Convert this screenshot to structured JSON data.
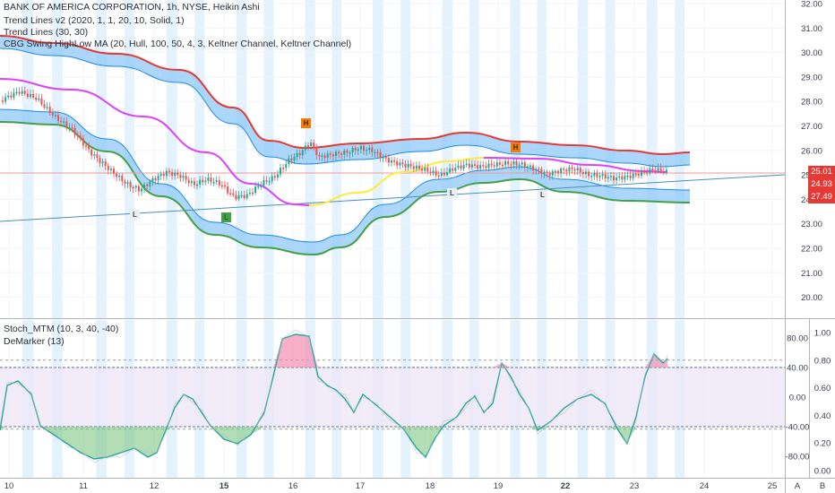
{
  "legend": {
    "title": "BANK OF AMERICA CORPORATION, 1h, NYSE, Heikin Ashi",
    "indicators": [
      "Trend Lines v2 (2020, 1, 1, 20, 10, Solid, 1)",
      "Trend Lines (30, 30)",
      "CBG Swing HighLow MA (20, Hull, 100, 50, 4, 3, Keltner Channel, Keltner Channel)"
    ],
    "lower": [
      "Stoch_MTM (10, 3, 40, -40)",
      "DeMarker (13)"
    ]
  },
  "price_axis": {
    "ticks": [
      "32.00",
      "31.00",
      "30.00",
      "29.00",
      "28.00",
      "27.00",
      "26.00",
      "25.00",
      "24.00",
      "23.00",
      "22.00",
      "21.00",
      "20.00"
    ],
    "labels": [
      {
        "text": "25.01",
        "color": "#e53935"
      },
      {
        "text": "24.93",
        "color": "#ffffff"
      },
      {
        "text": "27.49",
        "color": "#e53935"
      }
    ]
  },
  "stoch_axis": {
    "ticks": [
      "80.00",
      "40.00",
      "0.00",
      "-40.00",
      "-80.00"
    ]
  },
  "demarker_axis": {
    "ticks": [
      "1.00",
      "0.80",
      "0.60",
      "0.40",
      "0.20",
      "0.00"
    ]
  },
  "time_axis": {
    "ticks": [
      "10",
      "11",
      "12",
      "15",
      "16",
      "17",
      "18",
      "19",
      "22",
      "23",
      "24",
      "25"
    ],
    "bold": [
      "15",
      "22"
    ]
  },
  "corner_buttons": [
    "A",
    "B"
  ],
  "markers": [
    {
      "text": "H",
      "kind": "high"
    },
    {
      "text": "H",
      "kind": "high"
    },
    {
      "text": "L",
      "kind": "low"
    },
    {
      "text": "L",
      "kind": "low"
    },
    {
      "text": "L",
      "kind": "low"
    },
    {
      "text": "L",
      "kind": "low"
    }
  ],
  "colors": {
    "upper_band": "#e53935",
    "lower_band": "#43a047",
    "channel_fill": "#90caf9",
    "ma_bear": "#e040fb",
    "ma_bull": "#ffeb3b",
    "candle_up": "#26a69a",
    "candle_down": "#ef5350",
    "stoch_line": "#26a69a",
    "session_shade": "#e3f2fd"
  }
}
